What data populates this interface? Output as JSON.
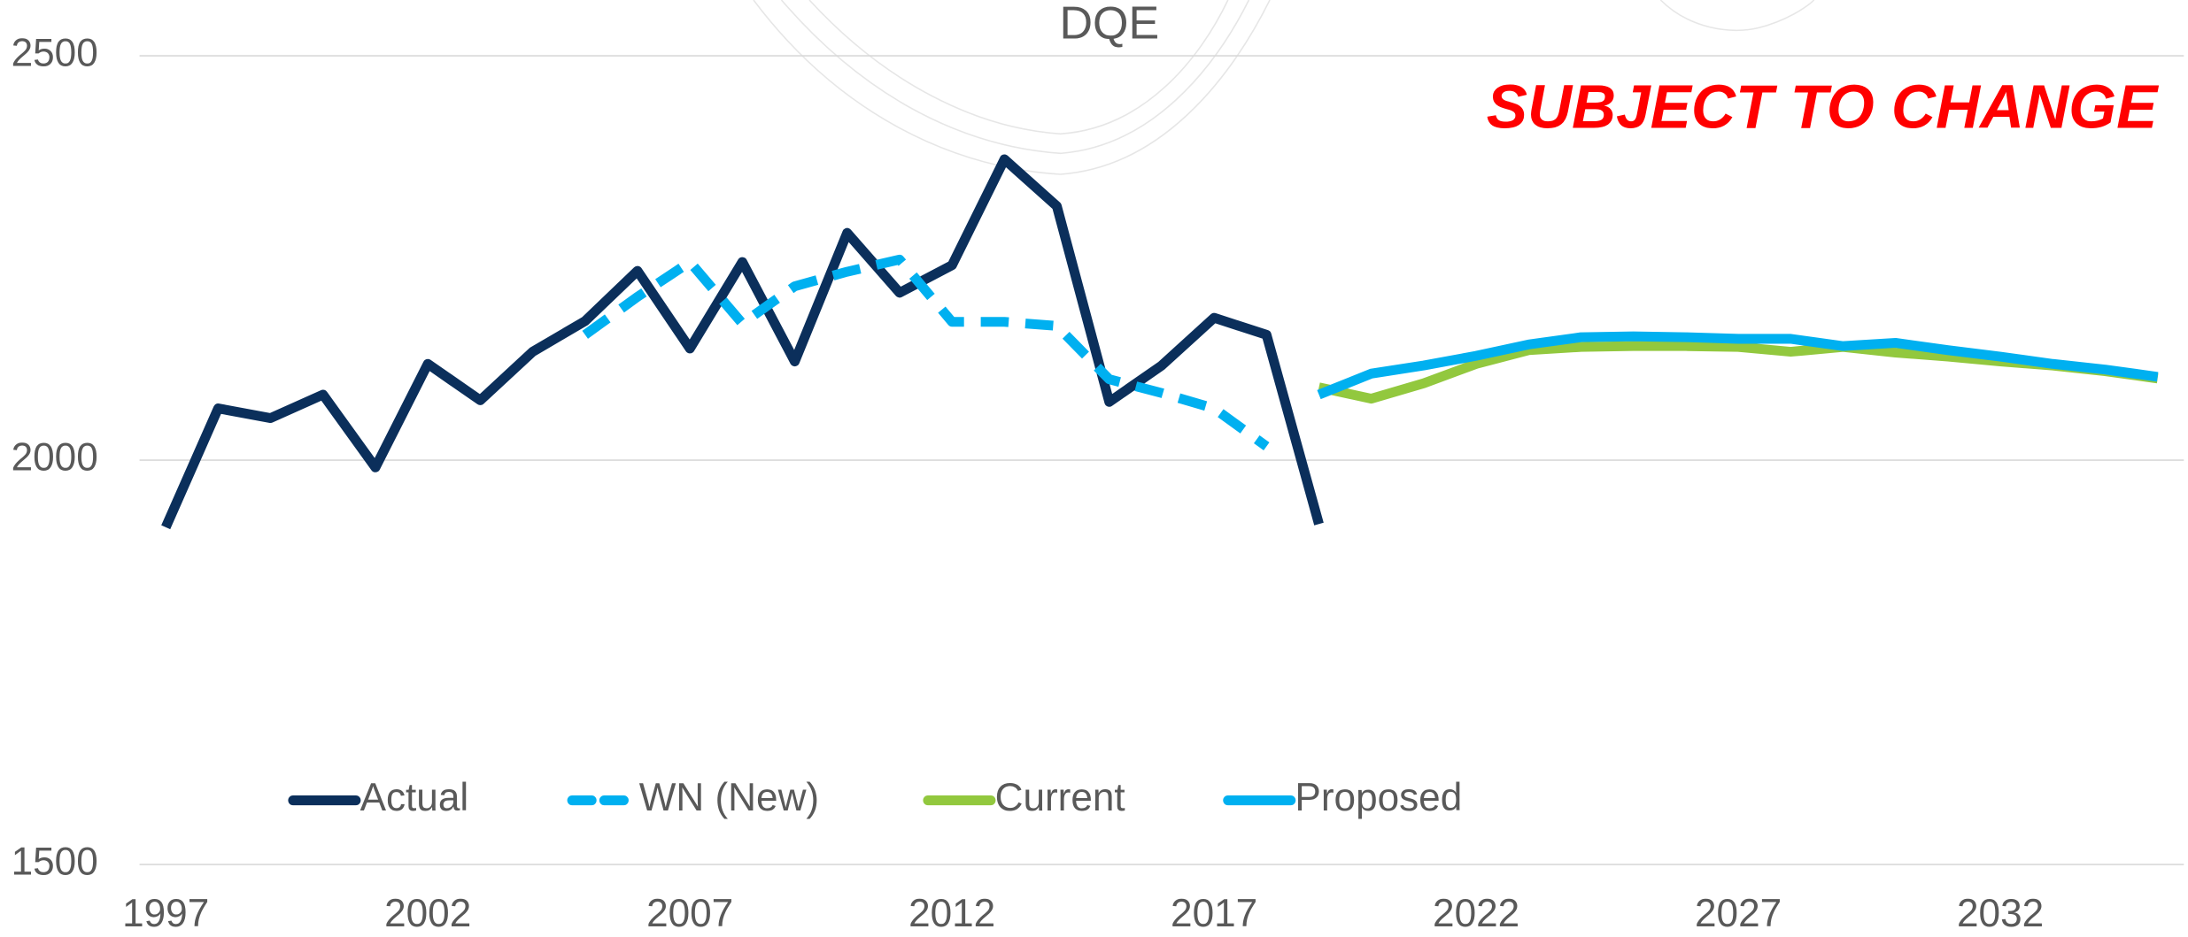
{
  "chart_data": {
    "type": "line",
    "title": "DQE",
    "annotation": "SUBJECT TO CHANGE",
    "annotation_color": "#ff0000",
    "x": [
      1997,
      1998,
      1999,
      2000,
      2001,
      2002,
      2003,
      2004,
      2005,
      2006,
      2007,
      2008,
      2009,
      2010,
      2011,
      2012,
      2013,
      2014,
      2015,
      2016,
      2017,
      2018,
      2019,
      2020,
      2021,
      2022,
      2023,
      2024,
      2025,
      2026,
      2027,
      2028,
      2029,
      2030,
      2031,
      2032,
      2033,
      2034,
      2035
    ],
    "xlim": [
      1996.5,
      2035.5
    ],
    "xticks": [
      1997,
      2002,
      2007,
      2012,
      2017,
      2022,
      2027,
      2032
    ],
    "ylim": [
      1500,
      2500
    ],
    "yticks": [
      1500,
      2000,
      2500
    ],
    "grid": true,
    "legend": "bottom",
    "series": [
      {
        "name": "Actual",
        "color": "#0b2f5b",
        "dashed": false,
        "values": [
          1917,
          2064,
          2052,
          2081,
          1991,
          2119,
          2074,
          2134,
          2172,
          2234,
          2138,
          2245,
          2122,
          2281,
          2207,
          2241,
          2372,
          2314,
          2072,
          2117,
          2176,
          2155,
          1921,
          null,
          null,
          null,
          null,
          null,
          null,
          null,
          null,
          null,
          null,
          null,
          null,
          null,
          null,
          null,
          null
        ]
      },
      {
        "name": "WN (New)",
        "color": "#00b0f0",
        "dashed": true,
        "values": [
          null,
          null,
          null,
          null,
          null,
          null,
          null,
          null,
          2155,
          2202,
          2245,
          2169,
          2215,
          2233,
          2248,
          2171,
          2171,
          2166,
          2100,
          2083,
          2064,
          2017,
          null,
          null,
          null,
          null,
          null,
          null,
          null,
          null,
          null,
          null,
          null,
          null,
          null,
          null,
          null,
          null,
          null
        ]
      },
      {
        "name": "Current",
        "color": "#92c83e",
        "dashed": false,
        "values": [
          null,
          null,
          null,
          null,
          null,
          null,
          null,
          null,
          null,
          null,
          null,
          null,
          null,
          null,
          null,
          null,
          null,
          null,
          null,
          null,
          null,
          null,
          2090,
          2076,
          2095,
          2119,
          2136,
          2140,
          2141,
          2141,
          2140,
          2134,
          2140,
          2133,
          2128,
          2122,
          2117,
          2110,
          2101
        ]
      },
      {
        "name": "Proposed",
        "color": "#00b0f0",
        "dashed": false,
        "values": [
          null,
          null,
          null,
          null,
          null,
          null,
          null,
          null,
          null,
          null,
          null,
          null,
          null,
          null,
          null,
          null,
          null,
          null,
          null,
          null,
          null,
          null,
          2081,
          2107,
          2117,
          2129,
          2143,
          2152,
          2153,
          2152,
          2150,
          2150,
          2141,
          2145,
          2136,
          2128,
          2119,
          2112,
          2103
        ]
      }
    ]
  }
}
